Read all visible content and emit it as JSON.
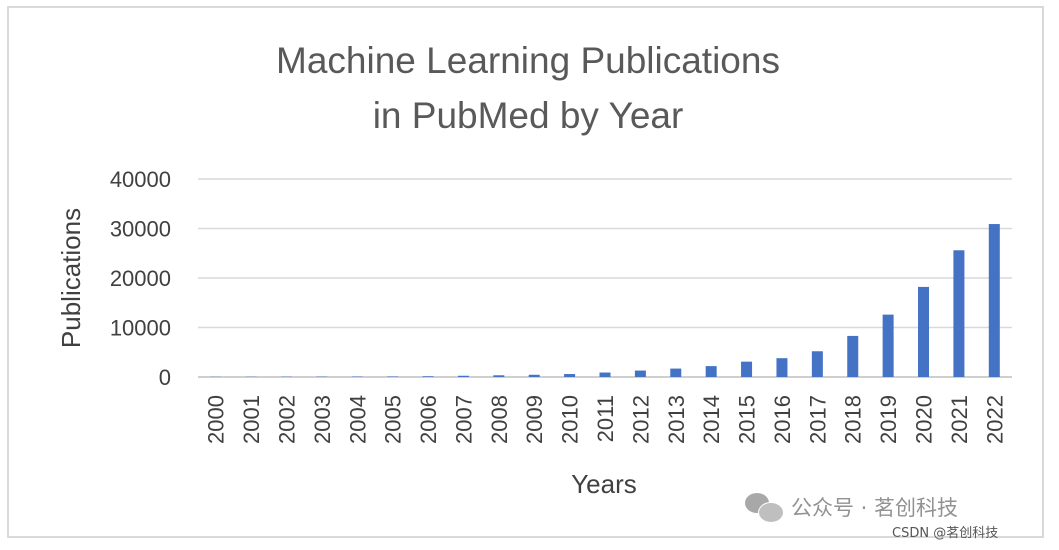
{
  "chart_data": {
    "type": "bar",
    "title": [
      "Machine Learning Publications",
      "in PubMed by Year"
    ],
    "xlabel": "Years",
    "ylabel": "Publications",
    "categories": [
      "2000",
      "2001",
      "2002",
      "2003",
      "2004",
      "2005",
      "2006",
      "2007",
      "2008",
      "2009",
      "2010",
      "2011",
      "2012",
      "2013",
      "2014",
      "2015",
      "2016",
      "2017",
      "2018",
      "2019",
      "2020",
      "2021",
      "2022"
    ],
    "values": [
      40,
      50,
      60,
      70,
      80,
      100,
      150,
      250,
      350,
      450,
      600,
      900,
      1300,
      1700,
      2200,
      3100,
      3800,
      5200,
      8300,
      12600,
      18200,
      25600,
      30900
    ],
    "yticks": [
      "0",
      "10000",
      "20000",
      "30000",
      "40000"
    ],
    "ylim": [
      0,
      40000
    ],
    "grid": true,
    "legend": "none",
    "bar_color": "#4472c4"
  },
  "watermark": {
    "text": "公众号 · 茗创科技",
    "sub": "CSDN @茗创科技",
    "icon": "wechat-icon"
  }
}
